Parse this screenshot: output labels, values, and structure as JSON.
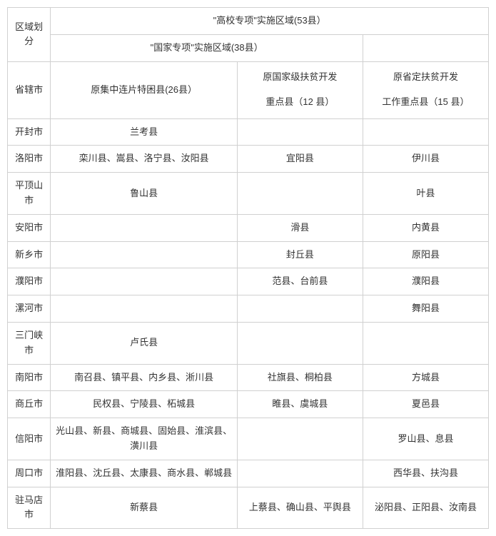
{
  "headers": {
    "region_label": "区域划分",
    "gaoxiao_zone": "\"高校专项\"实施区域(53县）",
    "guojia_zone": "\"国家专项\"实施区域(38县）",
    "city_label": "省辖市",
    "col_jizhong": "原集中连片特困县(26县）",
    "col_guojia": "原国家级扶贫开发",
    "col_guojia_sub": "重点县（12 县）",
    "col_sheng": "原省定扶贫开发",
    "col_sheng_sub": "工作重点县（15 县）"
  },
  "rows": [
    {
      "city": "开封市",
      "jizhong": "兰考县",
      "guojia": "",
      "sheng": ""
    },
    {
      "city": "洛阳市",
      "jizhong": "栾川县、嵩县、洛宁县、汝阳县",
      "guojia": "宜阳县",
      "sheng": "伊川县"
    },
    {
      "city": "平顶山市",
      "jizhong": "鲁山县",
      "guojia": "",
      "sheng": "叶县"
    },
    {
      "city": "安阳市",
      "jizhong": "",
      "guojia": "滑县",
      "sheng": "内黄县"
    },
    {
      "city": "新乡市",
      "jizhong": "",
      "guojia": "封丘县",
      "sheng": "原阳县"
    },
    {
      "city": "濮阳市",
      "jizhong": "",
      "guojia": "范县、台前县",
      "sheng": "濮阳县"
    },
    {
      "city": "漯河市",
      "jizhong": "",
      "guojia": "",
      "sheng": "舞阳县"
    },
    {
      "city": "三门峡市",
      "jizhong": "卢氏县",
      "guojia": "",
      "sheng": ""
    },
    {
      "city": "南阳市",
      "jizhong": "南召县、镇平县、内乡县、淅川县",
      "guojia": "社旗县、桐柏县",
      "sheng": "方城县"
    },
    {
      "city": "商丘市",
      "jizhong": "民权县、宁陵县、柘城县",
      "guojia": "睢县、虞城县",
      "sheng": "夏邑县"
    },
    {
      "city": "信阳市",
      "jizhong": "光山县、新县、商城县、固始县、淮滨县、潢川县",
      "guojia": "",
      "sheng": "罗山县、息县"
    },
    {
      "city": "周口市",
      "jizhong": "淮阳县、沈丘县、太康县、商水县、郸城县",
      "guojia": "",
      "sheng": "西华县、扶沟县"
    },
    {
      "city": "驻马店市",
      "jizhong": "新蔡县",
      "guojia": "上蔡县、确山县、平舆县",
      "sheng": "泌阳县、正阳县、汝南县"
    }
  ]
}
